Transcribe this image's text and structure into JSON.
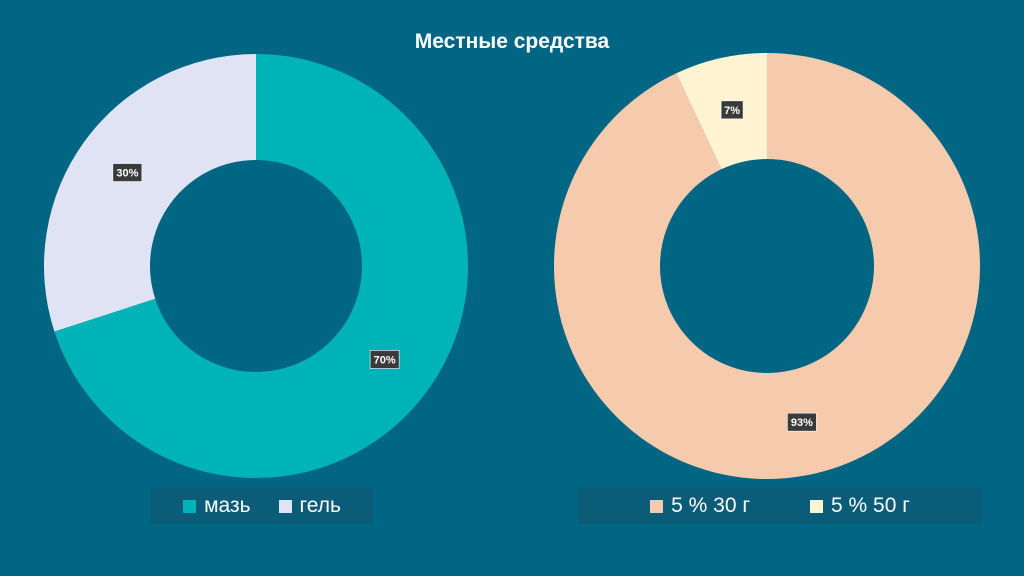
{
  "title": "Местные средства",
  "chart_data": [
    {
      "type": "pie",
      "subtype": "doughnut",
      "categories": [
        "мазь",
        "гель"
      ],
      "values": [
        70,
        30
      ],
      "data_labels": [
        "70%",
        "30%"
      ],
      "colors": [
        "#00b3b8",
        "#dfe3f4"
      ],
      "legend_position": "bottom"
    },
    {
      "type": "pie",
      "subtype": "doughnut",
      "categories": [
        "5 % 30 г",
        "5 % 50 г"
      ],
      "values": [
        93,
        7
      ],
      "data_labels": [
        "93%",
        "7%"
      ],
      "colors": [
        "#f6cbad",
        "#fff3d2"
      ],
      "legend_position": "bottom"
    }
  ]
}
